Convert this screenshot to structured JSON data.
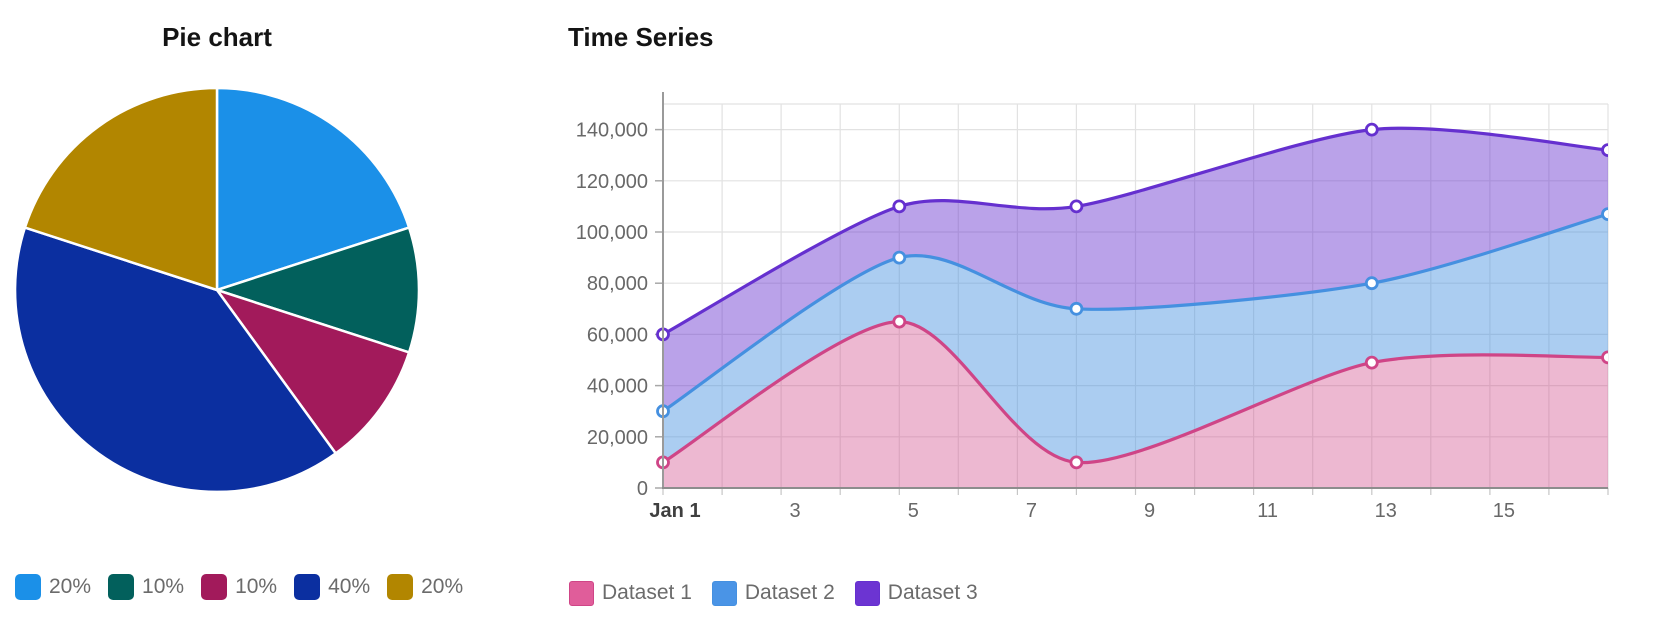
{
  "chart_data": [
    {
      "type": "pie",
      "title": "Pie chart",
      "labels": [
        "20%",
        "10%",
        "10%",
        "40%",
        "20%"
      ],
      "values": [
        20,
        10,
        10,
        40,
        20
      ],
      "colors": [
        "#1b90e8",
        "#02605c",
        "#a21a5b",
        "#0b2fa0",
        "#b28600"
      ],
      "start_angle_deg": 0,
      "direction": "clockwise",
      "slice_border_color": "#ffffff",
      "legend_position": "bottom"
    },
    {
      "type": "area",
      "title": "Time Series",
      "x_unit": "day of January",
      "x": [
        1,
        5,
        8,
        13,
        17
      ],
      "xlim": [
        1,
        17
      ],
      "ylim": [
        0,
        150000
      ],
      "series": [
        {
          "name": "Dataset 1",
          "values": [
            10000,
            65000,
            10000,
            49000,
            51000
          ],
          "line_color": "#cf4587",
          "fill_color": "rgba(207,69,135,0.38)",
          "legend_swatch": "#e05d9a"
        },
        {
          "name": "Dataset 2",
          "values": [
            30000,
            90000,
            70000,
            80000,
            107000
          ],
          "line_color": "#4590e0",
          "fill_color": "rgba(69,144,224,0.45)",
          "legend_swatch": "#4a94e6"
        },
        {
          "name": "Dataset 3",
          "values": [
            60000,
            110000,
            110000,
            140000,
            132000
          ],
          "line_color": "#6530cf",
          "fill_color": "rgba(101,48,207,0.45)",
          "legend_swatch": "#6c34d2"
        }
      ],
      "fill_mode": "each series fills down to the series below it; Dataset 1 fills to zero",
      "point_style": "white-filled circles with colored ring",
      "grid": true,
      "y_ticks": [
        {
          "value": 0,
          "label": "0"
        },
        {
          "value": 20000,
          "label": "20,000"
        },
        {
          "value": 40000,
          "label": "40,000"
        },
        {
          "value": 60000,
          "label": "60,000"
        },
        {
          "value": 80000,
          "label": "80,000"
        },
        {
          "value": 100000,
          "label": "100,000"
        },
        {
          "value": 120000,
          "label": "120,000"
        },
        {
          "value": 140000,
          "label": "140,000"
        }
      ],
      "x_ticks": [
        {
          "day": 1,
          "label": "Jan 1",
          "bold": true
        },
        {
          "day": 3,
          "label": "3",
          "bold": false
        },
        {
          "day": 5,
          "label": "5",
          "bold": false
        },
        {
          "day": 7,
          "label": "7",
          "bold": false
        },
        {
          "day": 9,
          "label": "9",
          "bold": false
        },
        {
          "day": 11,
          "label": "11",
          "bold": false
        },
        {
          "day": 13,
          "label": "13",
          "bold": false
        },
        {
          "day": 15,
          "label": "15",
          "bold": false
        }
      ],
      "legend_position": "bottom"
    }
  ]
}
